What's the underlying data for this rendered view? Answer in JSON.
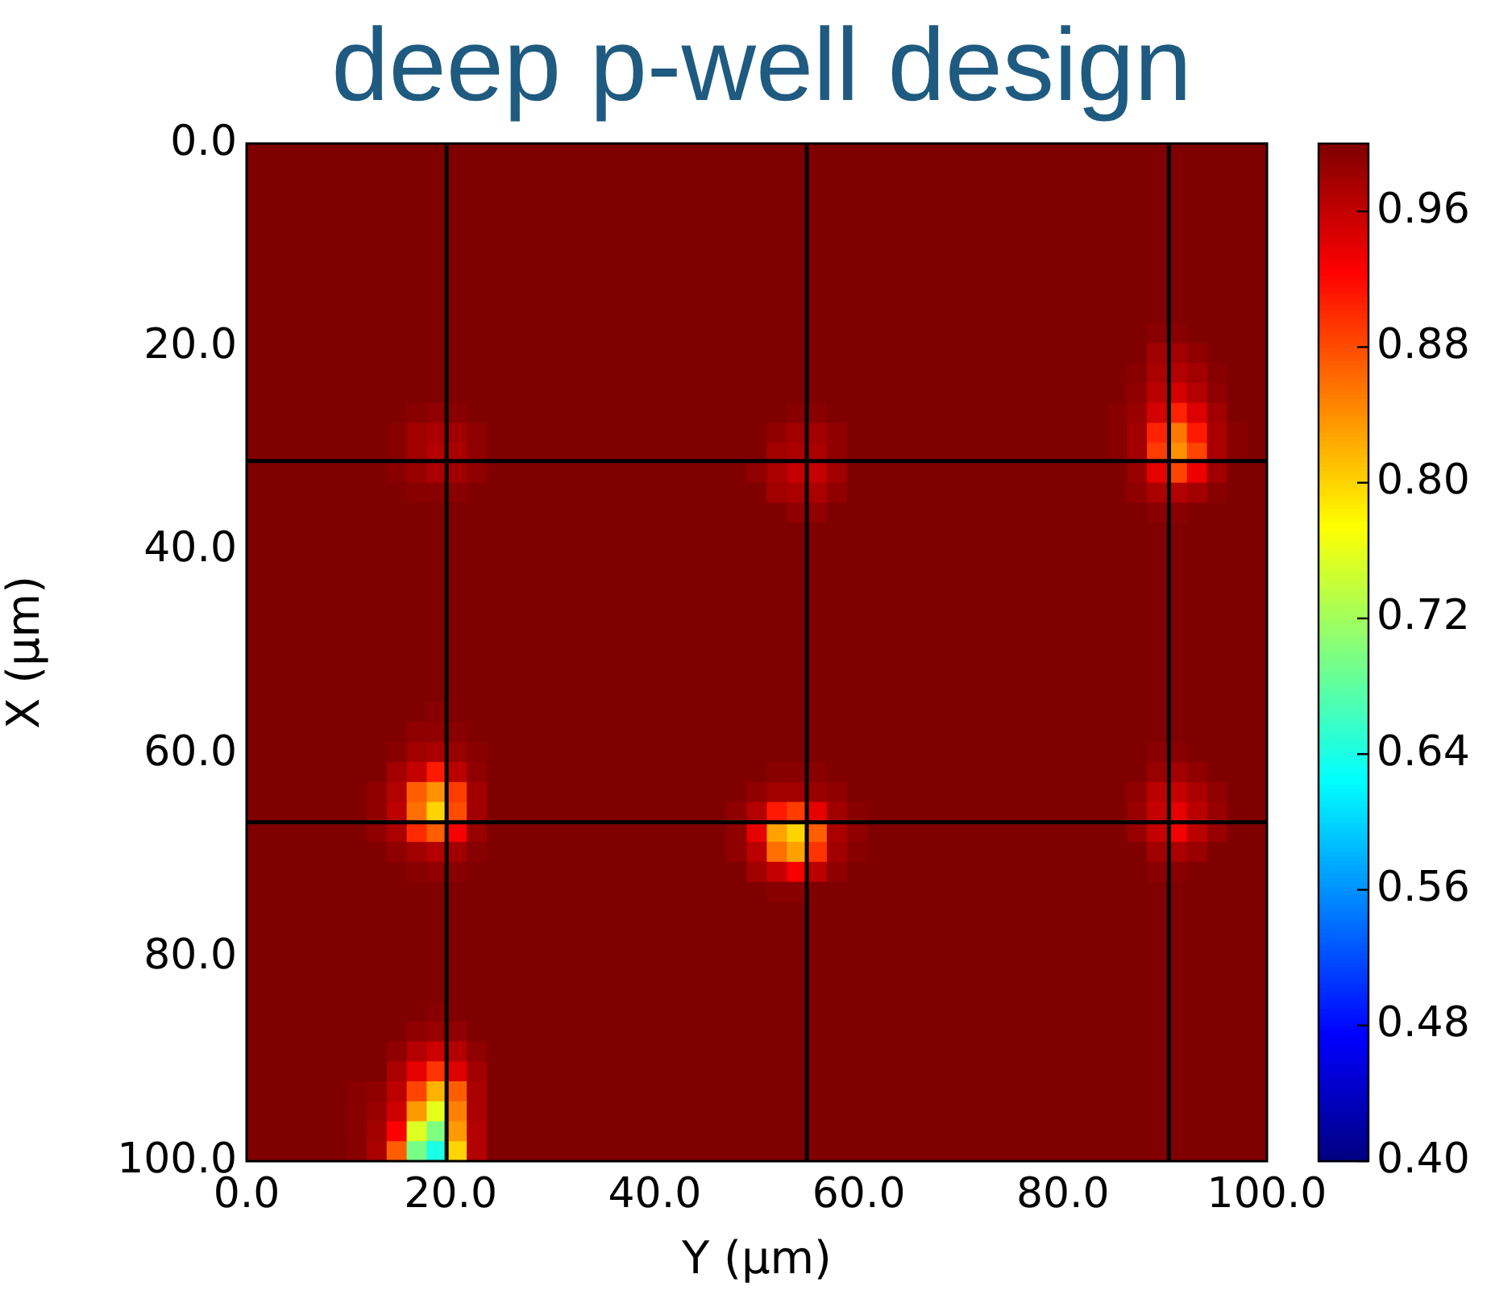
{
  "chart_data": {
    "type": "heatmap",
    "title": "deep p-well design",
    "xlabel": "Y (μm)",
    "ylabel": "X (μm)",
    "xlim": [
      0,
      100
    ],
    "ylim": [
      100,
      0
    ],
    "xticks": [
      {
        "value": 0,
        "label": "0.0"
      },
      {
        "value": 20,
        "label": "20.0"
      },
      {
        "value": 40,
        "label": "40.0"
      },
      {
        "value": 60,
        "label": "60.0"
      },
      {
        "value": 80,
        "label": "80.0"
      },
      {
        "value": 100,
        "label": "100.0"
      }
    ],
    "yticks": [
      {
        "value": 0,
        "label": "0.0"
      },
      {
        "value": 20,
        "label": "20.0"
      },
      {
        "value": 40,
        "label": "40.0"
      },
      {
        "value": 60,
        "label": "60.0"
      },
      {
        "value": 80,
        "label": "80.0"
      },
      {
        "value": 100,
        "label": "100.0"
      }
    ],
    "clim": [
      0.4,
      1.0
    ],
    "cticks": [
      {
        "value": 0.4,
        "label": "0.40"
      },
      0.48,
      0.56,
      0.64,
      0.72,
      {
        "value": 0.8,
        "label": "0.80"
      },
      0.88,
      0.96
    ],
    "ref_lines": [
      {
        "axis": "x",
        "value": 19.6,
        "color": "#000000"
      },
      {
        "axis": "x",
        "value": 54.9,
        "color": "#000000"
      },
      {
        "axis": "x",
        "value": 90.4,
        "color": "#000000"
      },
      {
        "axis": "y",
        "value": 31.2,
        "color": "#000000"
      },
      {
        "axis": "y",
        "value": 66.7,
        "color": "#000000"
      }
    ],
    "cells": [
      [
        1,
        1,
        1,
        1,
        1,
        1,
        1,
        1,
        1,
        1,
        1,
        1,
        1,
        1,
        1,
        1,
        1,
        1,
        1,
        1,
        1,
        1,
        1,
        1,
        1,
        1,
        1,
        1,
        1,
        1,
        1,
        1,
        1,
        1,
        1,
        1,
        1,
        1,
        1,
        1,
        1,
        1,
        1,
        1,
        1,
        1,
        1,
        1,
        1,
        1,
        1
      ],
      [
        1,
        1,
        1,
        1,
        1,
        1,
        1,
        1,
        1,
        1,
        1,
        1,
        1,
        1,
        1,
        1,
        1,
        1,
        1,
        1,
        1,
        1,
        1,
        1,
        1,
        1,
        1,
        1,
        1,
        1,
        1,
        1,
        1,
        1,
        1,
        1,
        1,
        1,
        1,
        1,
        1,
        1,
        1,
        1,
        1,
        1,
        1,
        1,
        1,
        1,
        1
      ],
      [
        1,
        1,
        1,
        1,
        1,
        1,
        1,
        1,
        1,
        1,
        1,
        1,
        1,
        1,
        1,
        1,
        1,
        1,
        1,
        1,
        1,
        1,
        1,
        1,
        1,
        1,
        1,
        1,
        1,
        1,
        1,
        1,
        1,
        1,
        1,
        1,
        1,
        1,
        1,
        1,
        1,
        1,
        1,
        1,
        1,
        1,
        1,
        1,
        1,
        1,
        1
      ],
      [
        1,
        1,
        1,
        1,
        1,
        1,
        1,
        1,
        1,
        1,
        1,
        1,
        1,
        1,
        1,
        1,
        1,
        1,
        1,
        1,
        1,
        1,
        1,
        1,
        1,
        1,
        1,
        1,
        1,
        1,
        1,
        1,
        1,
        1,
        1,
        1,
        1,
        1,
        1,
        1,
        1,
        1,
        1,
        1,
        1,
        1,
        1,
        1,
        1,
        1,
        1
      ],
      [
        1,
        1,
        1,
        1,
        1,
        1,
        1,
        1,
        1,
        1,
        1,
        1,
        1,
        1,
        1,
        1,
        1,
        1,
        1,
        1,
        1,
        1,
        1,
        1,
        1,
        1,
        1,
        1,
        1,
        1,
        1,
        1,
        1,
        1,
        1,
        1,
        1,
        1,
        1,
        1,
        1,
        1,
        1,
        1,
        1,
        1,
        1,
        1,
        1,
        1,
        1
      ],
      [
        1,
        1,
        1,
        1,
        1,
        1,
        1,
        1,
        1,
        1,
        1,
        1,
        1,
        1,
        1,
        1,
        1,
        1,
        1,
        1,
        1,
        1,
        1,
        1,
        1,
        1,
        1,
        1,
        1,
        1,
        1,
        1,
        1,
        1,
        1,
        1,
        1,
        1,
        1,
        1,
        1,
        1,
        1,
        1,
        1,
        1,
        1,
        1,
        1,
        1,
        1
      ],
      [
        1,
        1,
        1,
        1,
        1,
        1,
        1,
        1,
        1,
        1,
        1,
        1,
        1,
        1,
        1,
        1,
        1,
        1,
        1,
        1,
        1,
        1,
        1,
        1,
        1,
        1,
        1,
        1,
        1,
        1,
        1,
        1,
        1,
        1,
        1,
        1,
        1,
        1,
        1,
        1,
        1,
        1,
        1,
        1,
        1,
        1,
        1,
        1,
        1,
        1,
        1
      ],
      [
        1,
        1,
        1,
        1,
        1,
        1,
        1,
        1,
        1,
        1,
        1,
        1,
        1,
        1,
        1,
        1,
        1,
        1,
        1,
        1,
        1,
        1,
        1,
        1,
        1,
        1,
        1,
        1,
        1,
        1,
        1,
        1,
        1,
        1,
        1,
        1,
        1,
        1,
        1,
        1,
        1,
        1,
        1,
        1,
        1,
        1,
        1,
        1,
        1,
        1,
        1
      ],
      [
        1,
        1,
        1,
        1,
        1,
        1,
        1,
        1,
        1,
        1,
        1,
        1,
        1,
        1,
        1,
        1,
        1,
        1,
        1,
        1,
        1,
        1,
        1,
        1,
        1,
        1,
        1,
        1,
        1,
        1,
        1,
        1,
        1,
        1,
        1,
        1,
        1,
        1,
        1,
        1,
        1,
        1,
        1,
        1,
        1,
        1,
        1,
        1,
        1,
        1,
        1
      ],
      [
        1,
        1,
        1,
        1,
        1,
        1,
        1,
        1,
        1,
        1,
        1,
        1,
        1,
        1,
        1,
        1,
        1,
        1,
        1,
        1,
        1,
        1,
        1,
        1,
        1,
        1,
        1,
        1,
        1,
        1,
        1,
        1,
        1,
        1,
        1,
        1,
        1,
        1,
        1,
        1,
        1,
        1,
        1,
        1,
        1,
        0.995,
        0.995,
        1,
        1,
        1,
        1
      ],
      [
        1,
        1,
        1,
        1,
        1,
        1,
        1,
        1,
        1,
        1,
        1,
        1,
        1,
        1,
        1,
        1,
        1,
        1,
        1,
        1,
        1,
        1,
        1,
        1,
        1,
        1,
        1,
        1,
        1,
        1,
        1,
        1,
        1,
        1,
        1,
        1,
        1,
        1,
        1,
        1,
        1,
        1,
        1,
        1,
        1,
        0.98,
        0.98,
        0.99,
        1,
        1,
        1
      ],
      [
        1,
        1,
        1,
        1,
        1,
        1,
        1,
        1,
        1,
        1,
        1,
        1,
        1,
        1,
        1,
        1,
        1,
        1,
        1,
        1,
        1,
        1,
        1,
        1,
        1,
        1,
        1,
        1,
        1,
        1,
        1,
        1,
        1,
        1,
        1,
        1,
        1,
        1,
        1,
        1,
        1,
        1,
        1,
        1,
        0.995,
        0.975,
        0.97,
        0.98,
        0.995,
        1,
        1
      ],
      [
        1,
        1,
        1,
        1,
        1,
        1,
        1,
        1,
        1,
        1,
        1,
        1,
        1,
        1,
        1,
        1,
        1,
        1,
        1,
        1,
        1,
        1,
        1,
        1,
        1,
        1,
        1,
        1,
        1,
        1,
        1,
        1,
        1,
        1,
        1,
        1,
        1,
        1,
        1,
        1,
        1,
        1,
        1,
        1,
        0.99,
        0.965,
        0.95,
        0.97,
        0.99,
        1,
        1
      ],
      [
        1,
        1,
        1,
        1,
        1,
        1,
        1,
        1,
        0.995,
        0.99,
        0.995,
        1,
        1,
        1,
        1,
        1,
        1,
        1,
        1,
        1,
        1,
        1,
        1,
        1,
        1,
        1,
        1,
        0.995,
        0.995,
        1,
        1,
        1,
        1,
        1,
        1,
        1,
        1,
        1,
        1,
        1,
        1,
        1,
        1,
        0.995,
        0.985,
        0.95,
        0.905,
        0.945,
        0.98,
        1,
        1
      ],
      [
        1,
        1,
        1,
        1,
        1,
        1,
        1,
        0.995,
        0.98,
        0.975,
        0.98,
        0.99,
        1,
        1,
        1,
        1,
        1,
        1,
        1,
        1,
        1,
        1,
        1,
        1,
        1,
        1,
        0.99,
        0.98,
        0.98,
        0.99,
        1,
        1,
        1,
        1,
        1,
        1,
        1,
        1,
        1,
        1,
        1,
        1,
        1,
        0.995,
        0.98,
        0.905,
        0.855,
        0.91,
        0.975,
        0.995,
        1
      ],
      [
        1,
        1,
        1,
        1,
        1,
        1,
        1,
        0.995,
        0.98,
        0.97,
        0.975,
        0.99,
        1,
        1,
        1,
        1,
        1,
        1,
        1,
        1,
        1,
        1,
        1,
        1,
        1,
        1,
        0.98,
        0.975,
        0.975,
        0.99,
        1,
        1,
        1,
        1,
        1,
        1,
        1,
        1,
        1,
        1,
        1,
        1,
        1,
        0.995,
        0.98,
        0.89,
        0.84,
        0.885,
        0.975,
        0.995,
        1
      ],
      [
        1,
        1,
        1,
        1,
        1,
        1,
        1,
        0.995,
        0.985,
        0.975,
        0.98,
        0.99,
        1,
        1,
        1,
        1,
        1,
        1,
        1,
        1,
        1,
        1,
        1,
        1,
        1,
        0.99,
        0.975,
        0.96,
        0.96,
        0.98,
        1,
        1,
        1,
        1,
        1,
        1,
        1,
        1,
        1,
        1,
        1,
        1,
        1,
        1,
        0.985,
        0.94,
        0.885,
        0.935,
        0.98,
        1,
        1
      ],
      [
        1,
        1,
        1,
        1,
        1,
        1,
        1,
        1,
        0.995,
        0.995,
        0.995,
        1,
        1,
        1,
        1,
        1,
        1,
        1,
        1,
        1,
        1,
        1,
        1,
        1,
        1,
        1,
        0.98,
        0.975,
        0.975,
        0.99,
        1,
        1,
        1,
        1,
        1,
        1,
        1,
        1,
        1,
        1,
        1,
        1,
        1,
        1,
        0.99,
        0.975,
        0.97,
        0.98,
        0.995,
        1,
        1
      ],
      [
        1,
        1,
        1,
        1,
        1,
        1,
        1,
        1,
        1,
        1,
        1,
        1,
        1,
        1,
        1,
        1,
        1,
        1,
        1,
        1,
        1,
        1,
        1,
        1,
        1,
        1,
        1,
        0.99,
        0.99,
        1,
        1,
        1,
        1,
        1,
        1,
        1,
        1,
        1,
        1,
        1,
        1,
        1,
        1,
        1,
        1,
        0.995,
        0.995,
        1,
        1,
        1,
        1
      ],
      [
        1,
        1,
        1,
        1,
        1,
        1,
        1,
        1,
        1,
        1,
        1,
        1,
        1,
        1,
        1,
        1,
        1,
        1,
        1,
        1,
        1,
        1,
        1,
        1,
        1,
        1,
        1,
        1,
        1,
        1,
        1,
        1,
        1,
        1,
        1,
        1,
        1,
        1,
        1,
        1,
        1,
        1,
        1,
        1,
        1,
        1,
        1,
        1,
        1,
        1,
        1
      ],
      [
        1,
        1,
        1,
        1,
        1,
        1,
        1,
        1,
        1,
        1,
        1,
        1,
        1,
        1,
        1,
        1,
        1,
        1,
        1,
        1,
        1,
        1,
        1,
        1,
        1,
        1,
        1,
        1,
        1,
        1,
        1,
        1,
        1,
        1,
        1,
        1,
        1,
        1,
        1,
        1,
        1,
        1,
        1,
        1,
        1,
        1,
        1,
        1,
        1,
        1,
        1
      ],
      [
        1,
        1,
        1,
        1,
        1,
        1,
        1,
        1,
        1,
        1,
        1,
        1,
        1,
        1,
        1,
        1,
        1,
        1,
        1,
        1,
        1,
        1,
        1,
        1,
        1,
        1,
        1,
        1,
        1,
        1,
        1,
        1,
        1,
        1,
        1,
        1,
        1,
        1,
        1,
        1,
        1,
        1,
        1,
        1,
        1,
        1,
        1,
        1,
        1,
        1,
        1
      ],
      [
        1,
        1,
        1,
        1,
        1,
        1,
        1,
        1,
        1,
        1,
        1,
        1,
        1,
        1,
        1,
        1,
        1,
        1,
        1,
        1,
        1,
        1,
        1,
        1,
        1,
        1,
        1,
        1,
        1,
        1,
        1,
        1,
        1,
        1,
        1,
        1,
        1,
        1,
        1,
        1,
        1,
        1,
        1,
        1,
        1,
        1,
        1,
        1,
        1,
        1,
        1
      ],
      [
        1,
        1,
        1,
        1,
        1,
        1,
        1,
        1,
        1,
        1,
        1,
        1,
        1,
        1,
        1,
        1,
        1,
        1,
        1,
        1,
        1,
        1,
        1,
        1,
        1,
        1,
        1,
        1,
        1,
        1,
        1,
        1,
        1,
        1,
        1,
        1,
        1,
        1,
        1,
        1,
        1,
        1,
        1,
        1,
        1,
        1,
        1,
        1,
        1,
        1,
        1
      ],
      [
        1,
        1,
        1,
        1,
        1,
        1,
        1,
        1,
        1,
        1,
        1,
        1,
        1,
        1,
        1,
        1,
        1,
        1,
        1,
        1,
        1,
        1,
        1,
        1,
        1,
        1,
        1,
        1,
        1,
        1,
        1,
        1,
        1,
        1,
        1,
        1,
        1,
        1,
        1,
        1,
        1,
        1,
        1,
        1,
        1,
        1,
        1,
        1,
        1,
        1,
        1
      ],
      [
        1,
        1,
        1,
        1,
        1,
        1,
        1,
        1,
        1,
        1,
        1,
        1,
        1,
        1,
        1,
        1,
        1,
        1,
        1,
        1,
        1,
        1,
        1,
        1,
        1,
        1,
        1,
        1,
        1,
        1,
        1,
        1,
        1,
        1,
        1,
        1,
        1,
        1,
        1,
        1,
        1,
        1,
        1,
        1,
        1,
        1,
        1,
        1,
        1,
        1,
        1
      ],
      [
        1,
        1,
        1,
        1,
        1,
        1,
        1,
        1,
        1,
        1,
        1,
        1,
        1,
        1,
        1,
        1,
        1,
        1,
        1,
        1,
        1,
        1,
        1,
        1,
        1,
        1,
        1,
        1,
        1,
        1,
        1,
        1,
        1,
        1,
        1,
        1,
        1,
        1,
        1,
        1,
        1,
        1,
        1,
        1,
        1,
        1,
        1,
        1,
        1,
        1,
        1
      ],
      [
        1,
        1,
        1,
        1,
        1,
        1,
        1,
        1,
        1,
        1,
        1,
        1,
        1,
        1,
        1,
        1,
        1,
        1,
        1,
        1,
        1,
        1,
        1,
        1,
        1,
        1,
        1,
        1,
        1,
        1,
        1,
        1,
        1,
        1,
        1,
        1,
        1,
        1,
        1,
        1,
        1,
        1,
        1,
        1,
        1,
        1,
        1,
        1,
        1,
        1,
        1
      ],
      [
        1,
        1,
        1,
        1,
        1,
        1,
        1,
        1,
        1,
        0.995,
        1,
        1,
        1,
        1,
        1,
        1,
        1,
        1,
        1,
        1,
        1,
        1,
        1,
        1,
        1,
        1,
        1,
        1,
        1,
        1,
        1,
        1,
        1,
        1,
        1,
        1,
        1,
        1,
        1,
        1,
        1,
        1,
        1,
        1,
        1,
        1,
        1,
        1,
        1,
        1,
        1
      ],
      [
        1,
        1,
        1,
        1,
        1,
        1,
        1,
        1,
        0.99,
        0.99,
        0.995,
        1,
        1,
        1,
        1,
        1,
        1,
        1,
        1,
        1,
        1,
        1,
        1,
        1,
        1,
        1,
        1,
        1,
        1,
        1,
        1,
        1,
        1,
        1,
        1,
        1,
        1,
        1,
        1,
        1,
        1,
        1,
        1,
        1,
        1,
        1,
        1,
        1,
        1,
        1,
        1
      ],
      [
        1,
        1,
        1,
        1,
        1,
        1,
        1,
        0.995,
        0.98,
        0.975,
        0.985,
        0.995,
        1,
        1,
        1,
        1,
        1,
        1,
        1,
        1,
        1,
        1,
        1,
        1,
        1,
        1,
        1,
        1,
        1,
        1,
        1,
        1,
        1,
        1,
        1,
        1,
        1,
        1,
        1,
        1,
        1,
        1,
        1,
        1,
        1,
        0.995,
        0.995,
        1,
        1,
        1,
        1
      ],
      [
        1,
        1,
        1,
        1,
        1,
        1,
        1,
        0.98,
        0.96,
        0.91,
        0.965,
        0.99,
        1,
        1,
        1,
        1,
        1,
        1,
        1,
        1,
        1,
        1,
        1,
        1,
        1,
        1,
        0.995,
        0.995,
        0.995,
        1,
        1,
        1,
        1,
        1,
        1,
        1,
        1,
        1,
        1,
        1,
        1,
        1,
        1,
        1,
        1,
        0.985,
        0.98,
        0.99,
        1,
        1,
        1
      ],
      [
        1,
        1,
        1,
        1,
        1,
        1,
        0.99,
        0.97,
        0.87,
        0.84,
        0.89,
        0.98,
        1,
        1,
        1,
        1,
        1,
        1,
        1,
        1,
        1,
        1,
        1,
        1,
        1,
        0.99,
        0.98,
        0.98,
        0.985,
        0.99,
        1,
        1,
        1,
        1,
        1,
        1,
        1,
        1,
        1,
        1,
        1,
        1,
        1,
        1,
        0.99,
        0.965,
        0.96,
        0.975,
        0.99,
        1,
        1
      ],
      [
        1,
        1,
        1,
        1,
        1,
        1,
        0.99,
        0.965,
        0.86,
        0.8,
        0.88,
        0.98,
        1,
        1,
        1,
        1,
        1,
        1,
        1,
        1,
        1,
        1,
        1,
        1,
        0.99,
        0.97,
        0.91,
        0.89,
        0.94,
        0.98,
        0.995,
        1,
        1,
        1,
        1,
        1,
        1,
        1,
        1,
        1,
        1,
        1,
        1,
        1,
        0.985,
        0.96,
        0.94,
        0.965,
        0.985,
        1,
        1
      ],
      [
        1,
        1,
        1,
        1,
        1,
        1,
        0.99,
        0.975,
        0.9,
        0.87,
        0.93,
        0.985,
        1,
        1,
        1,
        1,
        1,
        1,
        1,
        1,
        1,
        1,
        1,
        1,
        0.99,
        0.94,
        0.83,
        0.8,
        0.87,
        0.975,
        0.99,
        1,
        1,
        1,
        1,
        1,
        1,
        1,
        1,
        1,
        1,
        1,
        1,
        1,
        0.985,
        0.96,
        0.93,
        0.965,
        0.985,
        1,
        1
      ],
      [
        1,
        1,
        1,
        1,
        1,
        1,
        1,
        0.99,
        0.98,
        0.97,
        0.98,
        0.995,
        1,
        1,
        1,
        1,
        1,
        1,
        1,
        1,
        1,
        1,
        1,
        1,
        0.99,
        0.965,
        0.86,
        0.83,
        0.895,
        0.98,
        0.995,
        1,
        1,
        1,
        1,
        1,
        1,
        1,
        1,
        1,
        1,
        1,
        1,
        1,
        1,
        0.98,
        0.975,
        0.985,
        1,
        1,
        1
      ],
      [
        1,
        1,
        1,
        1,
        1,
        1,
        1,
        1,
        0.995,
        0.99,
        0.995,
        1,
        1,
        1,
        1,
        1,
        1,
        1,
        1,
        1,
        1,
        1,
        1,
        1,
        1,
        0.98,
        0.96,
        0.93,
        0.965,
        0.99,
        1,
        1,
        1,
        1,
        1,
        1,
        1,
        1,
        1,
        1,
        1,
        1,
        1,
        1,
        1,
        0.995,
        0.995,
        1,
        1,
        1,
        1
      ],
      [
        1,
        1,
        1,
        1,
        1,
        1,
        1,
        1,
        1,
        1,
        1,
        1,
        1,
        1,
        1,
        1,
        1,
        1,
        1,
        1,
        1,
        1,
        1,
        1,
        1,
        1,
        0.995,
        0.995,
        1,
        1,
        1,
        1,
        1,
        1,
        1,
        1,
        1,
        1,
        1,
        1,
        1,
        1,
        1,
        1,
        1,
        1,
        1,
        1,
        1,
        1,
        1
      ],
      [
        1,
        1,
        1,
        1,
        1,
        1,
        1,
        1,
        1,
        1,
        1,
        1,
        1,
        1,
        1,
        1,
        1,
        1,
        1,
        1,
        1,
        1,
        1,
        1,
        1,
        1,
        1,
        1,
        1,
        1,
        1,
        1,
        1,
        1,
        1,
        1,
        1,
        1,
        1,
        1,
        1,
        1,
        1,
        1,
        1,
        1,
        1,
        1,
        1,
        1,
        1
      ],
      [
        1,
        1,
        1,
        1,
        1,
        1,
        1,
        1,
        1,
        1,
        1,
        1,
        1,
        1,
        1,
        1,
        1,
        1,
        1,
        1,
        1,
        1,
        1,
        1,
        1,
        1,
        1,
        1,
        1,
        1,
        1,
        1,
        1,
        1,
        1,
        1,
        1,
        1,
        1,
        1,
        1,
        1,
        1,
        1,
        1,
        1,
        1,
        1,
        1,
        1,
        1
      ],
      [
        1,
        1,
        1,
        1,
        1,
        1,
        1,
        1,
        1,
        1,
        1,
        1,
        1,
        1,
        1,
        1,
        1,
        1,
        1,
        1,
        1,
        1,
        1,
        1,
        1,
        1,
        1,
        1,
        1,
        1,
        1,
        1,
        1,
        1,
        1,
        1,
        1,
        1,
        1,
        1,
        1,
        1,
        1,
        1,
        1,
        1,
        1,
        1,
        1,
        1,
        1
      ],
      [
        1,
        1,
        1,
        1,
        1,
        1,
        1,
        1,
        1,
        1,
        1,
        1,
        1,
        1,
        1,
        1,
        1,
        1,
        1,
        1,
        1,
        1,
        1,
        1,
        1,
        1,
        1,
        1,
        1,
        1,
        1,
        1,
        1,
        1,
        1,
        1,
        1,
        1,
        1,
        1,
        1,
        1,
        1,
        1,
        1,
        1,
        1,
        1,
        1,
        1,
        1
      ],
      [
        1,
        1,
        1,
        1,
        1,
        1,
        1,
        1,
        1,
        1,
        1,
        1,
        1,
        1,
        1,
        1,
        1,
        1,
        1,
        1,
        1,
        1,
        1,
        1,
        1,
        1,
        1,
        1,
        1,
        1,
        1,
        1,
        1,
        1,
        1,
        1,
        1,
        1,
        1,
        1,
        1,
        1,
        1,
        1,
        1,
        1,
        1,
        1,
        1,
        1,
        1
      ],
      [
        1,
        1,
        1,
        1,
        1,
        1,
        1,
        1,
        1,
        0.995,
        1,
        1,
        1,
        1,
        1,
        1,
        1,
        1,
        1,
        1,
        1,
        1,
        1,
        1,
        1,
        1,
        1,
        1,
        1,
        1,
        1,
        1,
        1,
        1,
        1,
        1,
        1,
        1,
        1,
        1,
        1,
        1,
        1,
        1,
        1,
        1,
        1,
        1,
        1,
        1,
        1
      ],
      [
        1,
        1,
        1,
        1,
        1,
        1,
        1,
        1,
        0.99,
        0.985,
        0.99,
        1,
        1,
        1,
        1,
        1,
        1,
        1,
        1,
        1,
        1,
        1,
        1,
        1,
        1,
        1,
        1,
        1,
        1,
        1,
        1,
        1,
        1,
        1,
        1,
        1,
        1,
        1,
        1,
        1,
        1,
        1,
        1,
        1,
        1,
        1,
        1,
        1,
        1,
        1,
        1
      ],
      [
        1,
        1,
        1,
        1,
        1,
        1,
        1,
        0.99,
        0.97,
        0.955,
        0.97,
        0.99,
        1,
        1,
        1,
        1,
        1,
        1,
        1,
        1,
        1,
        1,
        1,
        1,
        1,
        1,
        1,
        1,
        1,
        1,
        1,
        1,
        1,
        1,
        1,
        1,
        1,
        1,
        1,
        1,
        1,
        1,
        1,
        1,
        1,
        1,
        1,
        1,
        1,
        1,
        1
      ],
      [
        1,
        1,
        1,
        1,
        1,
        1,
        1,
        0.975,
        0.94,
        0.895,
        0.945,
        0.98,
        1,
        1,
        1,
        1,
        1,
        1,
        1,
        1,
        1,
        1,
        1,
        1,
        1,
        1,
        1,
        1,
        1,
        1,
        1,
        1,
        1,
        1,
        1,
        1,
        1,
        1,
        1,
        1,
        1,
        1,
        1,
        1,
        1,
        1,
        1,
        1,
        1,
        1,
        1
      ],
      [
        1,
        1,
        1,
        1,
        1,
        0.995,
        0.99,
        0.965,
        0.885,
        0.82,
        0.87,
        0.975,
        1,
        1,
        1,
        1,
        1,
        1,
        1,
        1,
        1,
        1,
        1,
        1,
        1,
        1,
        1,
        1,
        1,
        1,
        1,
        1,
        1,
        1,
        1,
        1,
        1,
        1,
        1,
        1,
        1,
        1,
        1,
        1,
        1,
        1,
        1,
        1,
        1,
        1,
        1
      ],
      [
        1,
        1,
        1,
        1,
        1,
        0.995,
        0.985,
        0.955,
        0.835,
        0.76,
        0.85,
        0.975,
        1,
        1,
        1,
        1,
        1,
        1,
        1,
        1,
        1,
        1,
        1,
        1,
        1,
        1,
        1,
        1,
        1,
        1,
        1,
        1,
        1,
        1,
        1,
        1,
        1,
        1,
        1,
        1,
        1,
        1,
        1,
        1,
        1,
        1,
        1,
        1,
        1,
        1,
        1
      ],
      [
        1,
        1,
        1,
        1,
        1,
        0.995,
        0.98,
        0.925,
        0.755,
        0.7,
        0.835,
        0.97,
        1,
        1,
        1,
        1,
        1,
        1,
        1,
        1,
        1,
        1,
        1,
        1,
        1,
        1,
        1,
        1,
        1,
        1,
        1,
        1,
        1,
        1,
        1,
        1,
        1,
        1,
        1,
        1,
        1,
        1,
        1,
        1,
        1,
        1,
        1,
        1,
        1,
        1,
        1
      ],
      [
        1,
        1,
        1,
        1,
        1,
        0.995,
        0.975,
        0.87,
        0.695,
        0.64,
        0.8,
        0.97,
        1,
        1,
        1,
        1,
        1,
        1,
        1,
        1,
        1,
        1,
        1,
        1,
        1,
        1,
        1,
        1,
        1,
        1,
        1,
        1,
        1,
        1,
        1,
        1,
        1,
        1,
        1,
        1,
        1,
        1,
        1,
        1,
        1,
        1,
        1,
        1,
        1,
        1,
        1
      ]
    ]
  }
}
